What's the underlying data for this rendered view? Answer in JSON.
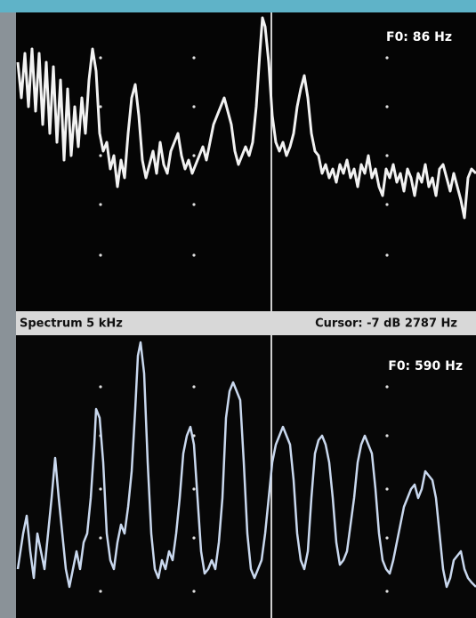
{
  "top_panel": {
    "f0_label": "F0: 86 Hz"
  },
  "status_bar": {
    "left": "Spectrum 5 kHz",
    "right": "Cursor: -7 dB 2787 Hz"
  },
  "bottom_panel": {
    "f0_label": "F0: 590 Hz"
  }
}
